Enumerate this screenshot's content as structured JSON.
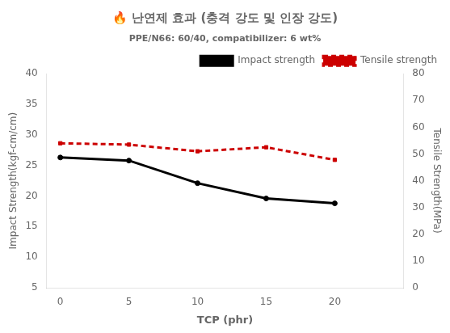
{
  "chart_data": {
    "type": "line",
    "title": "🔥 난연제 효과 (충격 강도 및 인장 강도)",
    "subtitle": "PPE/N66: 60/40, compatibilizer: 6 wt%",
    "xlabel": "TCP (phr)",
    "ylabel": "Impact Strength(kgf-cm/cm)",
    "y2label": "Tensile Strength(MPa)",
    "x": [
      0,
      5,
      10,
      15,
      20
    ],
    "series": [
      {
        "name": "Impact strength",
        "color": "#000000",
        "marker": "circle",
        "line_style": "solid",
        "values": [
          26.3,
          25.8,
          22.1,
          19.6,
          18.8
        ]
      },
      {
        "name": "Tensile strength",
        "color": "#cc0000",
        "marker": "square",
        "line_style": "dashed",
        "axis": "y2",
        "values": [
          54.0,
          53.5,
          51.0,
          52.5,
          47.8
        ]
      }
    ],
    "xlim": [
      -1,
      25
    ],
    "xticks": [
      0,
      5,
      10,
      15,
      20
    ],
    "ylim": [
      5,
      40
    ],
    "yticks": [
      5,
      10,
      15,
      20,
      25,
      30,
      35,
      40
    ],
    "y2lim": [
      0,
      80
    ],
    "y2ticks": [
      0,
      10,
      20,
      30,
      40,
      50,
      60,
      70,
      80
    ],
    "grid": false,
    "legend": "upper right"
  }
}
